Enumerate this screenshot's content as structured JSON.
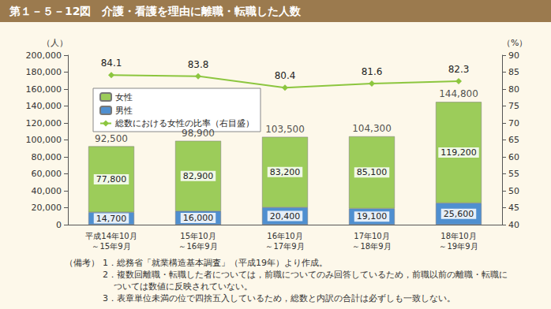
{
  "chart_data": {
    "type": "bar",
    "title": "第１－５－12図　介護・看護を理由に離職・転職した人数",
    "categories": [
      "平成14年10月\n～15年9月",
      "15年10月\n～16年9月",
      "16年10月\n～17年9月",
      "17年10月\n～18年9月",
      "18年10月\n～19年9月"
    ],
    "series": [
      {
        "name": "女性",
        "type": "bar",
        "color": "#9ccc5a",
        "values": [
          77800,
          82900,
          83200,
          85100,
          119200
        ],
        "value_labels": [
          "77,800",
          "82,900",
          "83,200",
          "85,100",
          "119,200"
        ]
      },
      {
        "name": "男性",
        "type": "bar",
        "color": "#4f8fd0",
        "values": [
          14700,
          16000,
          20400,
          19100,
          25600
        ],
        "value_labels": [
          "14,700",
          "16,000",
          "20,400",
          "19,100",
          "25,600"
        ]
      },
      {
        "name": "総数における女性の比率（右目盛）",
        "type": "line",
        "axis": "y2",
        "color": "#8cc63f",
        "marker": "diamond",
        "values": [
          84.1,
          83.8,
          80.4,
          81.6,
          82.3
        ]
      }
    ],
    "totals": [
      92500,
      98900,
      103500,
      104300,
      144800
    ],
    "total_labels": [
      "92,500",
      "98,900",
      "103,500",
      "104,300",
      "144,800"
    ],
    "stacked": true,
    "data_labels": true,
    "grid": false,
    "legend": "upper left",
    "ylabel": "（人）",
    "ylim": [
      0,
      200000
    ],
    "yticks": [
      0,
      {
        "value": 20000,
        "label": "20,000"
      },
      {
        "value": 40000,
        "label": "40,000"
      },
      {
        "value": 60000,
        "label": "60,000"
      },
      {
        "value": 80000,
        "label": "80,000"
      },
      {
        "value": 100000,
        "label": "100,000"
      },
      {
        "value": 120000,
        "label": "120,000"
      },
      {
        "value": 140000,
        "label": "140,000"
      },
      {
        "value": 160000,
        "label": "160,000"
      },
      {
        "value": 180000,
        "label": "180,000"
      },
      {
        "value": 200000,
        "label": "200,000"
      }
    ],
    "y2label": "（%）",
    "y2lim": [
      40,
      90
    ],
    "y2ticks": [
      40,
      45,
      50,
      55,
      60,
      65,
      70,
      75,
      80,
      85,
      90
    ],
    "notes_title": "（備考）",
    "notes": [
      [
        "1．総務省「就業構造基本調査」（平成19年）より作成。"
      ],
      [
        "2．複数回離職・転職した者については，前職についてのみ回答しているため，前職以前の離職・転職に",
        "ついては数値に反映されていない。"
      ],
      [
        "3．表章単位未満の位で四捨五入しているため，総数と内訳の合計は必ずしも一致しない。"
      ]
    ]
  }
}
